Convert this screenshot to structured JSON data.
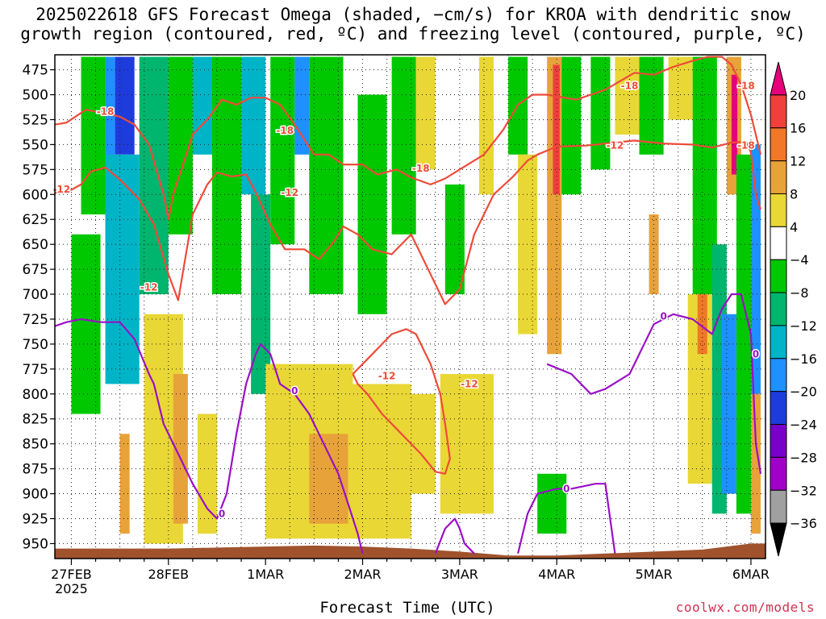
{
  "title_line1": "2025022618 GFS Forecast Omega (shaded, −cm/s) for KROA with dendritic snow",
  "title_line2": "growth region (contoured, red, ºC) and freezing level (contoured, purple, ºC)",
  "credit": "coolwx.com/models",
  "chart_data": {
    "type": "heatmap",
    "title": "2025022618 GFS Forecast Omega (shaded, −cm/s) for KROA with dendritic snow growth region (contoured, red, ºC) and freezing level (contoured, purple, ºC)",
    "xlabel": "Forecast Time (UTC)",
    "ylabel": "",
    "x_ticks": [
      {
        "label": "27FEB",
        "sublabel": "2025",
        "day": 0.0
      },
      {
        "label": "28FEB",
        "day": 1.0
      },
      {
        "label": "1MAR",
        "day": 2.0
      },
      {
        "label": "2MAR",
        "day": 3.0
      },
      {
        "label": "3MAR",
        "day": 4.0
      },
      {
        "label": "4MAR",
        "day": 5.0
      },
      {
        "label": "5MAR",
        "day": 6.0
      },
      {
        "label": "6MAR",
        "day": 7.0
      }
    ],
    "xlim_days": [
      -0.17,
      7.15
    ],
    "y_ticks_hpa": [
      475,
      500,
      525,
      550,
      575,
      600,
      625,
      650,
      675,
      700,
      725,
      750,
      775,
      800,
      825,
      850,
      875,
      900,
      925,
      950
    ],
    "ylim_hpa": [
      460,
      965
    ],
    "grid": true,
    "colorbar": {
      "labels": [
        "20",
        "16",
        "12",
        "8",
        "4",
        "−4",
        "−8",
        "−12",
        "−16",
        "−20",
        "−24",
        "−28",
        "−32",
        "−36"
      ],
      "label_values": [
        20,
        16,
        12,
        8,
        4,
        -4,
        -8,
        -12,
        -16,
        -20,
        -24,
        -28,
        -32,
        -36
      ],
      "bands": [
        {
          "lo": 20,
          "hi": 24,
          "color": "#e6007a",
          "shape": "triangle"
        },
        {
          "lo": 16,
          "hi": 20,
          "color": "#f0403c"
        },
        {
          "lo": 12,
          "hi": 16,
          "color": "#f07828"
        },
        {
          "lo": 8,
          "hi": 12,
          "color": "#e8a23a"
        },
        {
          "lo": 4,
          "hi": 8,
          "color": "#e9d735"
        },
        {
          "lo": -4,
          "hi": 4,
          "color": "#ffffff"
        },
        {
          "lo": -8,
          "hi": -4,
          "color": "#00c800"
        },
        {
          "lo": -12,
          "hi": -8,
          "color": "#00b56e"
        },
        {
          "lo": -16,
          "hi": -12,
          "color": "#00b4c8"
        },
        {
          "lo": -20,
          "hi": -16,
          "color": "#1e90ff"
        },
        {
          "lo": -24,
          "hi": -20,
          "color": "#1e3cdc"
        },
        {
          "lo": -28,
          "hi": -24,
          "color": "#7800c8"
        },
        {
          "lo": -32,
          "hi": -28,
          "color": "#a000c8"
        },
        {
          "lo": -36,
          "hi": -32,
          "color": "#a0a0a0"
        },
        {
          "lo": -40,
          "hi": -36,
          "color": "#000000",
          "shape": "triangle"
        }
      ]
    },
    "omega_cells": [
      {
        "d0": 0.35,
        "d1": 0.45,
        "p0": 462,
        "p1": 720,
        "v": -20
      },
      {
        "d0": 0.45,
        "d1": 0.65,
        "p0": 462,
        "p1": 560,
        "v": -22
      },
      {
        "d0": 0.1,
        "d1": 0.35,
        "p0": 462,
        "p1": 620,
        "v": -8
      },
      {
        "d0": 0.35,
        "d1": 0.7,
        "p0": 560,
        "p1": 790,
        "v": -14
      },
      {
        "d0": 0.0,
        "d1": 0.3,
        "p0": 640,
        "p1": 820,
        "v": -6
      },
      {
        "d0": 0.7,
        "d1": 1.0,
        "p0": 462,
        "p1": 700,
        "v": -10
      },
      {
        "d0": 1.0,
        "d1": 1.25,
        "p0": 462,
        "p1": 640,
        "v": -6
      },
      {
        "d0": 1.25,
        "d1": 1.45,
        "p0": 462,
        "p1": 560,
        "v": -14
      },
      {
        "d0": 1.45,
        "d1": 1.75,
        "p0": 462,
        "p1": 700,
        "v": -8
      },
      {
        "d0": 1.75,
        "d1": 2.0,
        "p0": 462,
        "p1": 600,
        "v": -14
      },
      {
        "d0": 1.85,
        "d1": 2.05,
        "p0": 600,
        "p1": 800,
        "v": -10
      },
      {
        "d0": 2.05,
        "d1": 2.3,
        "p0": 462,
        "p1": 650,
        "v": -8
      },
      {
        "d0": 2.3,
        "d1": 2.45,
        "p0": 462,
        "p1": 560,
        "v": -18
      },
      {
        "d0": 2.45,
        "d1": 2.8,
        "p0": 462,
        "p1": 700,
        "v": -8
      },
      {
        "d0": 2.95,
        "d1": 3.25,
        "p0": 500,
        "p1": 720,
        "v": -6
      },
      {
        "d0": 3.3,
        "d1": 3.55,
        "p0": 462,
        "p1": 640,
        "v": -6
      },
      {
        "d0": 3.55,
        "d1": 3.75,
        "p0": 462,
        "p1": 575,
        "v": 6
      },
      {
        "d0": 3.85,
        "d1": 4.05,
        "p0": 590,
        "p1": 700,
        "v": -8
      },
      {
        "d0": 4.2,
        "d1": 4.35,
        "p0": 462,
        "p1": 600,
        "v": 7
      },
      {
        "d0": 4.5,
        "d1": 4.7,
        "p0": 462,
        "p1": 560,
        "v": -6
      },
      {
        "d0": 4.6,
        "d1": 4.8,
        "p0": 560,
        "p1": 740,
        "v": 6
      },
      {
        "d0": 4.9,
        "d1": 5.05,
        "p0": 462,
        "p1": 760,
        "v": 10
      },
      {
        "d0": 4.96,
        "d1": 5.03,
        "p0": 470,
        "p1": 600,
        "v": 18
      },
      {
        "d0": 5.05,
        "d1": 5.25,
        "p0": 462,
        "p1": 600,
        "v": -6
      },
      {
        "d0": 5.35,
        "d1": 5.55,
        "p0": 462,
        "p1": 575,
        "v": -6
      },
      {
        "d0": 5.6,
        "d1": 5.85,
        "p0": 462,
        "p1": 540,
        "v": 5
      },
      {
        "d0": 5.85,
        "d1": 6.1,
        "p0": 462,
        "p1": 560,
        "v": -6
      },
      {
        "d0": 5.95,
        "d1": 6.05,
        "p0": 620,
        "p1": 700,
        "v": 10
      },
      {
        "d0": 6.15,
        "d1": 6.4,
        "p0": 462,
        "p1": 525,
        "v": 5
      },
      {
        "d0": 6.4,
        "d1": 6.65,
        "p0": 462,
        "p1": 700,
        "v": -6
      },
      {
        "d0": 6.35,
        "d1": 6.6,
        "p0": 700,
        "p1": 890,
        "v": 6
      },
      {
        "d0": 6.45,
        "d1": 6.55,
        "p0": 700,
        "p1": 760,
        "v": 14
      },
      {
        "d0": 6.6,
        "d1": 6.75,
        "p0": 650,
        "p1": 920,
        "v": -10
      },
      {
        "d0": 6.75,
        "d1": 6.9,
        "p0": 462,
        "p1": 600,
        "v": 8
      },
      {
        "d0": 6.8,
        "d1": 6.86,
        "p0": 480,
        "p1": 580,
        "v": 20
      },
      {
        "d0": 6.7,
        "d1": 6.85,
        "p0": 720,
        "p1": 900,
        "v": -18
      },
      {
        "d0": 6.85,
        "d1": 7.0,
        "p0": 560,
        "p1": 920,
        "v": -8
      },
      {
        "d0": 7.0,
        "d1": 7.1,
        "p0": 550,
        "p1": 800,
        "v": -20
      },
      {
        "d0": 7.0,
        "d1": 7.1,
        "p0": 800,
        "p1": 940,
        "v": 10
      },
      {
        "d0": 0.75,
        "d1": 1.15,
        "p0": 720,
        "p1": 950,
        "v": 5
      },
      {
        "d0": 1.05,
        "d1": 1.2,
        "p0": 780,
        "p1": 930,
        "v": 10
      },
      {
        "d0": 0.5,
        "d1": 0.6,
        "p0": 840,
        "p1": 940,
        "v": 10
      },
      {
        "d0": 1.3,
        "d1": 1.5,
        "p0": 820,
        "p1": 940,
        "v": 5
      },
      {
        "d0": 2.0,
        "d1": 2.9,
        "p0": 770,
        "p1": 945,
        "v": 5
      },
      {
        "d0": 2.45,
        "d1": 2.85,
        "p0": 840,
        "p1": 930,
        "v": 10
      },
      {
        "d0": 2.9,
        "d1": 3.5,
        "p0": 790,
        "p1": 945,
        "v": 5
      },
      {
        "d0": 3.45,
        "d1": 3.75,
        "p0": 800,
        "p1": 900,
        "v": 6
      },
      {
        "d0": 3.8,
        "d1": 4.35,
        "p0": 780,
        "p1": 920,
        "v": 5
      },
      {
        "d0": 4.8,
        "d1": 5.1,
        "p0": 880,
        "p1": 940,
        "v": -6
      }
    ],
    "series": [
      {
        "name": "-12",
        "role": "dendritic growth region (red)",
        "color": "#ee4b3a",
        "segments": [
          {
            "x": [
              -0.17,
              -0.05,
              0.1,
              0.2,
              0.35,
              0.5,
              0.7,
              0.85,
              1.0,
              1.1,
              1.25,
              1.4,
              1.5,
              1.65,
              1.8,
              1.9,
              2.05,
              2.2,
              2.4,
              2.55,
              2.7,
              2.8,
              2.95,
              3.1,
              3.3,
              3.5,
              3.7,
              3.85,
              4.0,
              4.15,
              4.35,
              4.55,
              4.7,
              4.8,
              5.0,
              5.3,
              5.6,
              5.8,
              6.1,
              6.4,
              6.6,
              6.8,
              6.95,
              7.0,
              7.05,
              7.1
            ],
            "y": [
              598,
              598,
              590,
              577,
              573,
              585,
              605,
              630,
              680,
              706,
              620,
              590,
              578,
              582,
              580,
              598,
              630,
              655,
              655,
              665,
              648,
              632,
              640,
              655,
              660,
              640,
              680,
              710,
              695,
              640,
              600,
              582,
              566,
              560,
              552,
              551,
              548,
              546,
              549,
              550,
              553,
              548,
              547,
              558,
              600,
              615
            ]
          },
          {
            "x": [
              2.9,
              3.1,
              3.3,
              3.45,
              3.55,
              3.7,
              3.8,
              3.85,
              3.9,
              3.85,
              3.75,
              3.6,
              3.4,
              3.2,
              3.05,
              2.95,
              2.9
            ],
            "y": [
              780,
              760,
              740,
              735,
              740,
              770,
              800,
              830,
              865,
              880,
              878,
              860,
              840,
              820,
              800,
              790,
              780
            ]
          }
        ],
        "labels": [
          {
            "day": -0.1,
            "hpa": 595
          },
          {
            "day": 0.8,
            "hpa": 693
          },
          {
            "day": 2.25,
            "hpa": 598
          },
          {
            "day": 3.25,
            "hpa": 782
          },
          {
            "day": 4.1,
            "hpa": 790
          },
          {
            "day": 5.6,
            "hpa": 551
          }
        ]
      },
      {
        "name": "-18",
        "role": "dendritic growth region (red)",
        "color": "#ee4b3a",
        "segments": [
          {
            "x": [
              -0.17,
              -0.05,
              0.15,
              0.3,
              0.5,
              0.65,
              0.8,
              0.95,
              1.0,
              1.05,
              1.15,
              1.25,
              1.4,
              1.55,
              1.7,
              1.85,
              2.0,
              2.15,
              2.3,
              2.5,
              2.65,
              2.8,
              3.0,
              3.15,
              3.35,
              3.5,
              3.7,
              3.85,
              4.0,
              4.25,
              4.45,
              4.6,
              4.75,
              4.9,
              5.2,
              5.5,
              5.8,
              6.0,
              6.2,
              6.4,
              6.55,
              6.7,
              6.8,
              6.9,
              7.0,
              7.1
            ],
            "y": [
              530,
              528,
              515,
              518,
              522,
              530,
              550,
              600,
              625,
              600,
              570,
              540,
              525,
              505,
              510,
              503,
              503,
              510,
              530,
              560,
              560,
              570,
              570,
              580,
              575,
              583,
              590,
              584,
              575,
              560,
              535,
              510,
              500,
              500,
              505,
              495,
              478,
              480,
              472,
              466,
              462,
              462,
              470,
              490,
              520,
              560
            ]
          }
        ],
        "labels": [
          {
            "day": 0.35,
            "hpa": 517
          },
          {
            "day": 2.2,
            "hpa": 536
          },
          {
            "day": 3.6,
            "hpa": 574
          },
          {
            "day": 5.75,
            "hpa": 491
          },
          {
            "day": 6.95,
            "hpa": 491
          },
          {
            "day": 6.95,
            "hpa": 551
          }
        ]
      },
      {
        "name": "0",
        "role": "freezing level (purple)",
        "color": "#9a10c6",
        "segments": [
          {
            "x": [
              -0.17,
              -0.05,
              0.1,
              0.3,
              0.5,
              0.65,
              0.8,
              0.85,
              0.95,
              1.1,
              1.25,
              1.4,
              1.5,
              1.6,
              1.7,
              1.8,
              1.9,
              1.95,
              2.05,
              2.15,
              2.3,
              2.45,
              2.6,
              2.75,
              2.85,
              2.95,
              3.0
            ],
            "y": [
              732,
              728,
              725,
              728,
              728,
              745,
              780,
              790,
              830,
              860,
              890,
              915,
              925,
              900,
              840,
              790,
              760,
              750,
              760,
              790,
              800,
              820,
              850,
              880,
              910,
              940,
              960
            ]
          },
          {
            "x": [
              3.75,
              3.85,
              3.95,
              4.0,
              4.05,
              4.15
            ],
            "y": [
              960,
              935,
              925,
              935,
              950,
              960
            ]
          },
          {
            "x": [
              4.6,
              4.7,
              4.8,
              5.0,
              5.15,
              5.4,
              5.5,
              5.6
            ],
            "y": [
              960,
              920,
              900,
              895,
              895,
              890,
              890,
              960
            ]
          },
          {
            "x": [
              4.9,
              5.15,
              5.35,
              5.5,
              5.75,
              6.0,
              6.2,
              6.4,
              6.6,
              6.7,
              6.8,
              6.9,
              7.0,
              7.05,
              7.1
            ],
            "y": [
              770,
              780,
              800,
              795,
              780,
              730,
              720,
              725,
              740,
              715,
              700,
              700,
              740,
              850,
              880
            ]
          }
        ],
        "labels": [
          {
            "day": 1.55,
            "hpa": 920
          },
          {
            "day": 2.3,
            "hpa": 797
          },
          {
            "day": 5.1,
            "hpa": 895
          },
          {
            "day": 6.1,
            "hpa": 722
          },
          {
            "day": 7.05,
            "hpa": 760
          }
        ]
      }
    ],
    "terrain": {
      "color": "#a0522d",
      "x": [
        -0.17,
        0.5,
        1.0,
        1.5,
        2.0,
        2.5,
        3.0,
        3.5,
        4.0,
        4.5,
        5.0,
        5.5,
        6.0,
        6.5,
        7.0,
        7.15
      ],
      "hpa": [
        955,
        955,
        955,
        954,
        953,
        952,
        953,
        955,
        958,
        962,
        962,
        960,
        958,
        956,
        950,
        950
      ]
    }
  }
}
